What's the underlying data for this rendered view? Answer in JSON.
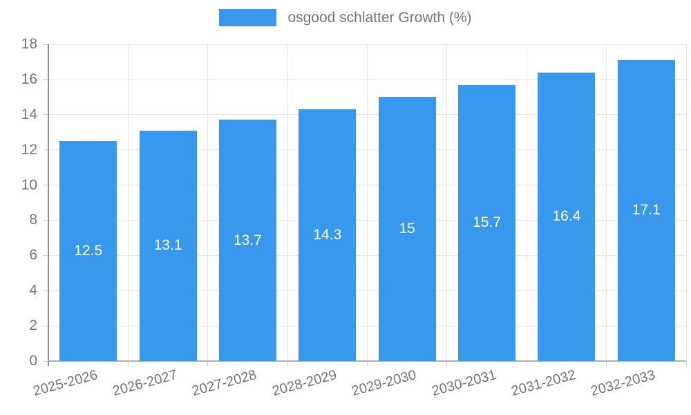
{
  "legend": {
    "label": "osgood schlatter Growth (%)"
  },
  "chart_data": {
    "type": "bar",
    "title": "osgood schlatter Growth (%)",
    "categories": [
      "2025-2026",
      "2026-2027",
      "2027-2028",
      "2028-2029",
      "2029-2030",
      "2030-2031",
      "2031-2032",
      "2032-2033"
    ],
    "values": [
      12.5,
      13.1,
      13.7,
      14.3,
      15,
      15.7,
      16.4,
      17.1
    ],
    "series": [
      {
        "name": "osgood schlatter Growth (%)",
        "values": [
          12.5,
          13.1,
          13.7,
          14.3,
          15,
          15.7,
          16.4,
          17.1
        ]
      }
    ],
    "xlabel": "",
    "ylabel": "",
    "ylim": [
      0,
      18
    ],
    "yticks": [
      0,
      2,
      4,
      6,
      8,
      10,
      12,
      14,
      16,
      18
    ],
    "grid": true,
    "legend_position": "top-center",
    "colors": {
      "bar": "#3899ec",
      "grid": "#e6e6e6",
      "axis_y": "#8f8f8f",
      "axis_x": "#b0b0b0",
      "tick": "#cccccc",
      "text": "#757575",
      "bar_label": "#ffffff",
      "background": "#ffffff"
    }
  }
}
